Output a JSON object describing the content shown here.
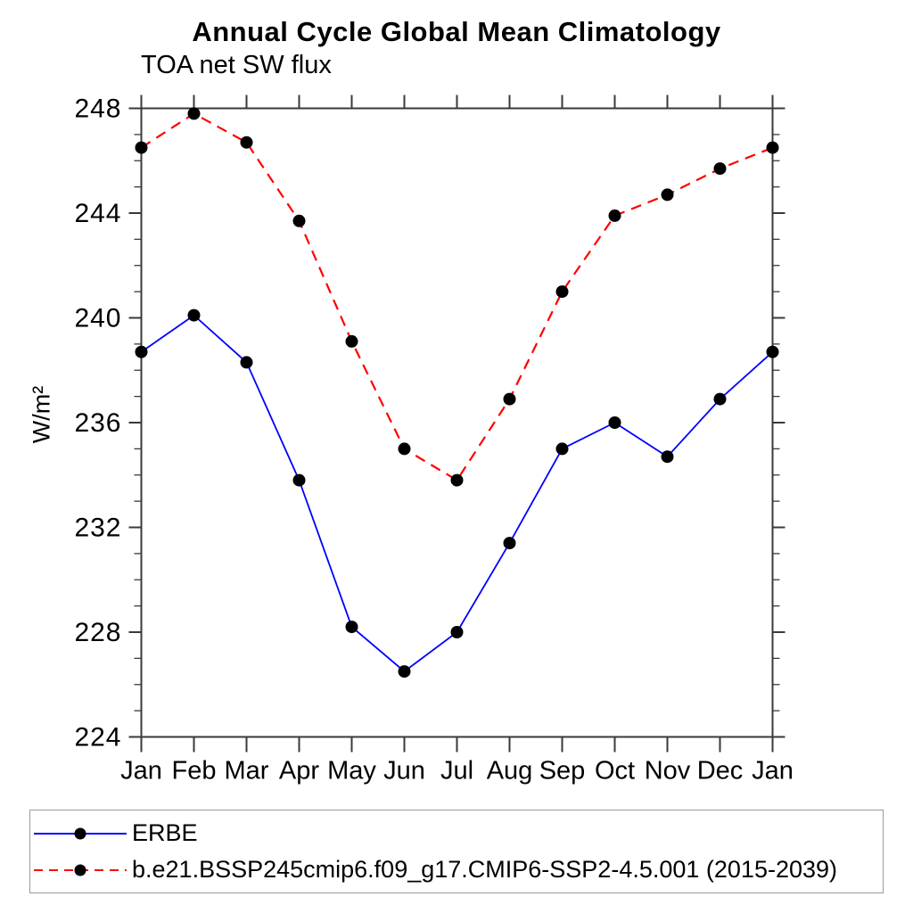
{
  "figure": {
    "title": "Annual Cycle Global Mean Climatology",
    "subtitle": "TOA net SW flux",
    "y_axis_label": "W/m²"
  },
  "chart_data": {
    "type": "line",
    "title": "Annual Cycle Global Mean Climatology",
    "subtitle": "TOA net SW flux",
    "xlabel": "",
    "ylabel": "W/m²",
    "categories": [
      "Jan",
      "Feb",
      "Mar",
      "Apr",
      "May",
      "Jun",
      "Jul",
      "Aug",
      "Sep",
      "Oct",
      "Nov",
      "Dec",
      "Jan"
    ],
    "y_axis": {
      "min": 224,
      "max": 248,
      "major_step": 4,
      "minor_step": 1,
      "tick_labels": [
        "224",
        "228",
        "232",
        "236",
        "240",
        "244",
        "248"
      ]
    },
    "grid": false,
    "legend_position": "bottom-left-box",
    "series": [
      {
        "name": "ERBE",
        "color": "#0000ff",
        "line_style": "solid",
        "marker": "filled-circle",
        "marker_color": "#000000",
        "values": [
          238.7,
          240.1,
          238.3,
          233.8,
          228.2,
          226.5,
          228.0,
          231.4,
          235.0,
          236.0,
          234.7,
          236.9,
          238.7
        ]
      },
      {
        "name": "b.e21.BSSP245cmip6.f09_g17.CMIP6-SSP2-4.5.001 (2015-2039)",
        "color": "#ff0000",
        "line_style": "dashed",
        "marker": "filled-circle",
        "marker_color": "#000000",
        "values": [
          246.5,
          247.8,
          246.7,
          243.7,
          239.1,
          235.0,
          233.8,
          236.9,
          241.0,
          243.9,
          244.7,
          245.7,
          246.5
        ]
      }
    ]
  },
  "colors": {
    "axis": "#3a3a3a",
    "marker": "#000000",
    "legend_border": "#9a9a9a",
    "background": "#ffffff"
  }
}
